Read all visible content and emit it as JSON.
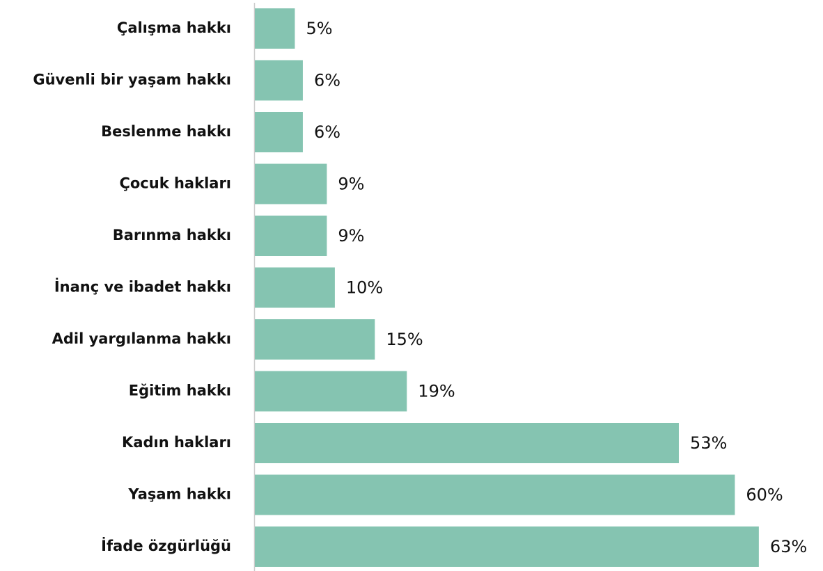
{
  "chart_data": {
    "type": "barh",
    "categories": [
      "Çalışma hakkı",
      "Güvenli bir yaşam hakkı",
      "Beslenme hakkı",
      "Çocuk hakları",
      "Barınma hakkı",
      "İnanç ve ibadet hakkı",
      "Adil yargılanma hakkı",
      "Eğitim hakkı",
      "Kadın hakları",
      "Yaşam hakkı",
      "İfade özgürlüğü"
    ],
    "values": [
      5,
      6,
      6,
      9,
      9,
      10,
      15,
      19,
      53,
      60,
      63
    ],
    "value_labels": [
      "5%",
      "6%",
      "6%",
      "9%",
      "9%",
      "10%",
      "15%",
      "19%",
      "53%",
      "60%",
      "63%"
    ],
    "color": "#85c4b1"
  }
}
